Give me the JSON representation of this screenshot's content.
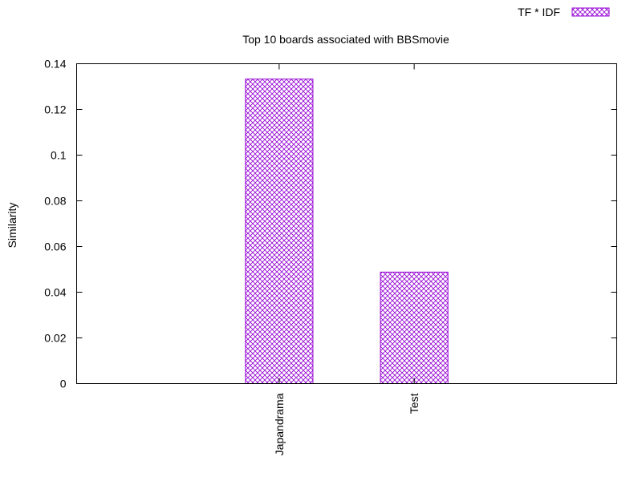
{
  "chart_data": {
    "type": "bar",
    "title": "Top 10 boards associated with BBSmovie",
    "xlabel": "",
    "ylabel": "Similarity",
    "categories": [
      "Japandrama",
      "Test"
    ],
    "series": [
      {
        "name": "TF * IDF",
        "values": [
          0.1333,
          0.0488
        ]
      }
    ],
    "ylim": [
      0,
      0.14
    ],
    "yticks": [
      "0",
      "0.02",
      "0.04",
      "0.06",
      "0.08",
      "0.1",
      "0.12",
      "0.14"
    ],
    "grid": false,
    "legend_position": "top-right",
    "bar_color": "#9400D3",
    "bar_pattern": "crosshatch"
  }
}
